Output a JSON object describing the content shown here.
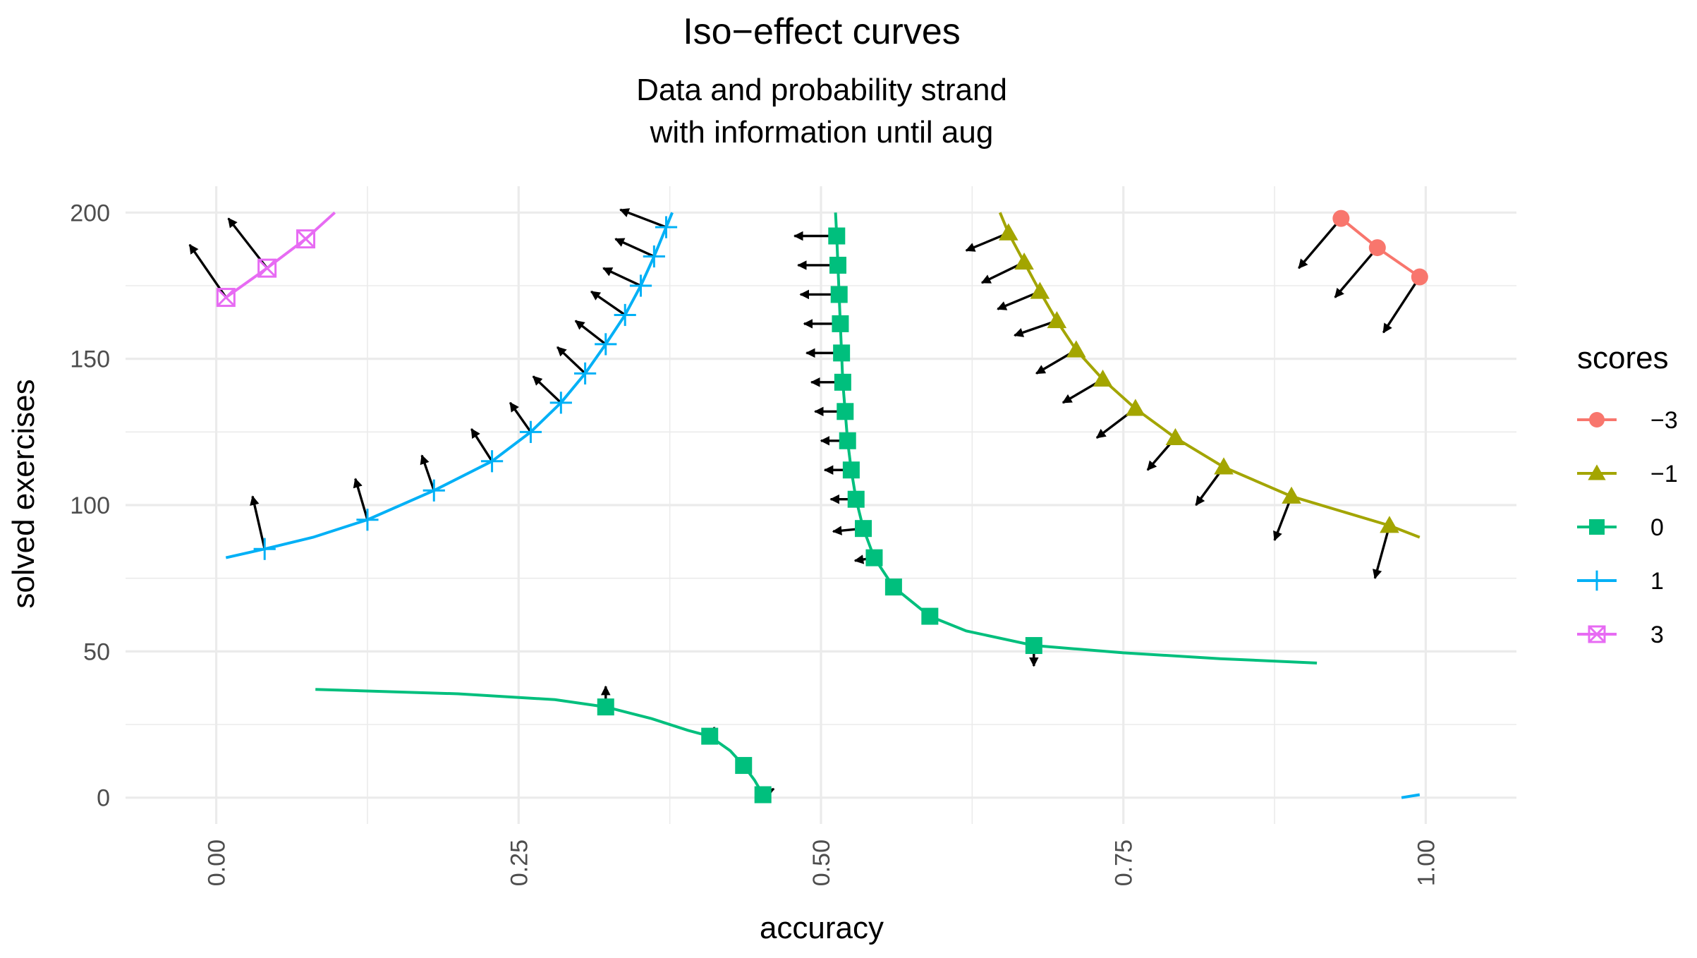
{
  "chart_data": {
    "type": "line",
    "title": "Iso−effect curves",
    "subtitle_lines": [
      "Data and probability strand",
      "with information until aug"
    ],
    "xlabel": "accuracy",
    "ylabel": "solved exercises",
    "xlim": [
      -0.075,
      1.075
    ],
    "ylim": [
      -9,
      209
    ],
    "x_ticks": [
      0,
      0.25,
      0.5,
      0.75,
      1
    ],
    "x_tick_labels": [
      "0.00",
      "0.25",
      "0.50",
      "0.75",
      "1.00"
    ],
    "y_ticks": [
      0,
      50,
      100,
      150,
      200
    ],
    "y_tick_labels": [
      "0",
      "50",
      "100",
      "150",
      "200"
    ],
    "grid": true,
    "legend_title": "scores",
    "legend_position": "right",
    "series": [
      {
        "name": "−3",
        "color": "#F8766D",
        "shape": "circle",
        "lines": [
          [
            [
              0.93,
              198
            ],
            [
              0.96,
              188
            ],
            [
              0.995,
              178
            ]
          ]
        ],
        "points": [
          [
            0.93,
            198
          ],
          [
            0.96,
            188
          ],
          [
            0.995,
            178
          ]
        ],
        "arrows": [
          [
            0.93,
            198,
            0.895,
            181
          ],
          [
            0.96,
            188,
            0.925,
            171
          ],
          [
            0.995,
            178,
            0.965,
            159
          ]
        ]
      },
      {
        "name": "−1",
        "color": "#A3A500",
        "shape": "triangle",
        "lines": [
          [
            [
              0.648,
              200
            ],
            [
              0.655,
              193
            ],
            [
              0.668,
              183
            ],
            [
              0.681,
              173
            ],
            [
              0.695,
              163
            ],
            [
              0.711,
              153
            ],
            [
              0.733,
              143
            ],
            [
              0.76,
              133
            ],
            [
              0.793,
              123
            ],
            [
              0.833,
              113
            ],
            [
              0.889,
              103
            ],
            [
              0.97,
              93
            ],
            [
              0.995,
              89
            ]
          ]
        ],
        "points": [
          [
            0.655,
            193
          ],
          [
            0.668,
            183
          ],
          [
            0.681,
            173
          ],
          [
            0.695,
            163
          ],
          [
            0.711,
            153
          ],
          [
            0.733,
            143
          ],
          [
            0.76,
            133
          ],
          [
            0.793,
            123
          ],
          [
            0.833,
            113
          ],
          [
            0.889,
            103
          ],
          [
            0.97,
            93
          ]
        ],
        "arrows": [
          [
            0.655,
            193,
            0.62,
            187
          ],
          [
            0.668,
            183,
            0.633,
            176
          ],
          [
            0.681,
            173,
            0.646,
            167
          ],
          [
            0.695,
            163,
            0.66,
            158
          ],
          [
            0.711,
            153,
            0.678,
            145
          ],
          [
            0.733,
            143,
            0.7,
            135
          ],
          [
            0.76,
            133,
            0.728,
            123
          ],
          [
            0.793,
            123,
            0.77,
            112
          ],
          [
            0.833,
            113,
            0.81,
            100
          ],
          [
            0.889,
            103,
            0.875,
            88
          ],
          [
            0.97,
            93,
            0.958,
            75
          ]
        ]
      },
      {
        "name": "0",
        "color": "#00BF7D",
        "shape": "square",
        "lines": [
          [
            [
              0.512,
              200
            ],
            [
              0.513,
              192
            ],
            [
              0.514,
              182
            ],
            [
              0.515,
              172
            ],
            [
              0.516,
              162
            ],
            [
              0.517,
              152
            ],
            [
              0.518,
              142
            ],
            [
              0.52,
              132
            ],
            [
              0.522,
              122
            ],
            [
              0.525,
              112
            ],
            [
              0.529,
              102
            ],
            [
              0.535,
              92
            ],
            [
              0.544,
              82
            ],
            [
              0.56,
              72
            ],
            [
              0.59,
              62
            ],
            [
              0.62,
              57
            ],
            [
              0.676,
              52
            ],
            [
              0.75,
              49.5
            ],
            [
              0.83,
              47.5
            ],
            [
              0.91,
              46
            ]
          ],
          [
            [
              0.082,
              37
            ],
            [
              0.2,
              35.5
            ],
            [
              0.28,
              33.5
            ],
            [
              0.322,
              31
            ],
            [
              0.36,
              27
            ],
            [
              0.39,
              23
            ],
            [
              0.408,
              21
            ],
            [
              0.425,
              16
            ],
            [
              0.436,
              11
            ],
            [
              0.445,
              6
            ],
            [
              0.452,
              1
            ]
          ]
        ],
        "points": [
          [
            0.513,
            192
          ],
          [
            0.514,
            182
          ],
          [
            0.515,
            172
          ],
          [
            0.516,
            162
          ],
          [
            0.517,
            152
          ],
          [
            0.518,
            142
          ],
          [
            0.52,
            132
          ],
          [
            0.522,
            122
          ],
          [
            0.525,
            112
          ],
          [
            0.529,
            102
          ],
          [
            0.535,
            92
          ],
          [
            0.544,
            82
          ],
          [
            0.56,
            72
          ],
          [
            0.59,
            62
          ],
          [
            0.676,
            52
          ],
          [
            0.322,
            31
          ],
          [
            0.408,
            21
          ],
          [
            0.436,
            11
          ],
          [
            0.452,
            1
          ]
        ],
        "arrows": [
          [
            0.513,
            192,
            0.478,
            192
          ],
          [
            0.514,
            182,
            0.481,
            182
          ],
          [
            0.515,
            172,
            0.483,
            172
          ],
          [
            0.516,
            162,
            0.486,
            162
          ],
          [
            0.517,
            152,
            0.488,
            152
          ],
          [
            0.518,
            142,
            0.492,
            142
          ],
          [
            0.52,
            132,
            0.495,
            132
          ],
          [
            0.522,
            122,
            0.5,
            122
          ],
          [
            0.525,
            112,
            0.503,
            112
          ],
          [
            0.529,
            102,
            0.508,
            102
          ],
          [
            0.535,
            92,
            0.51,
            91
          ],
          [
            0.544,
            82,
            0.528,
            81
          ],
          [
            0.676,
            52,
            0.676,
            45
          ],
          [
            0.322,
            31,
            0.322,
            38
          ],
          [
            0.408,
            21,
            0.412,
            24
          ],
          [
            0.436,
            11,
            0.437,
            12
          ],
          [
            0.452,
            1,
            0.461,
            3
          ]
        ]
      },
      {
        "name": "1",
        "color": "#00B0F6",
        "shape": "plus",
        "lines": [
          [
            [
              0.008,
              82
            ],
            [
              0.04,
              85
            ],
            [
              0.08,
              89
            ],
            [
              0.125,
              95
            ],
            [
              0.18,
              105
            ],
            [
              0.228,
              115
            ],
            [
              0.26,
              125
            ],
            [
              0.285,
              135
            ],
            [
              0.305,
              145
            ],
            [
              0.322,
              155
            ],
            [
              0.338,
              165
            ],
            [
              0.351,
              175
            ],
            [
              0.362,
              185
            ],
            [
              0.372,
              195
            ],
            [
              0.377,
              200
            ]
          ],
          [
            [
              0.98,
              0
            ],
            [
              0.995,
              1
            ]
          ]
        ],
        "points": [
          [
            0.04,
            85
          ],
          [
            0.125,
            95
          ],
          [
            0.18,
            105
          ],
          [
            0.228,
            115
          ],
          [
            0.26,
            125
          ],
          [
            0.285,
            135
          ],
          [
            0.305,
            145
          ],
          [
            0.322,
            155
          ],
          [
            0.338,
            165
          ],
          [
            0.351,
            175
          ],
          [
            0.362,
            185
          ],
          [
            0.372,
            195
          ]
        ],
        "arrows": [
          [
            0.04,
            85,
            0.03,
            103
          ],
          [
            0.125,
            95,
            0.115,
            109
          ],
          [
            0.18,
            105,
            0.17,
            117
          ],
          [
            0.228,
            115,
            0.211,
            126
          ],
          [
            0.26,
            125,
            0.243,
            135
          ],
          [
            0.285,
            135,
            0.262,
            144
          ],
          [
            0.305,
            145,
            0.282,
            154
          ],
          [
            0.322,
            155,
            0.297,
            163
          ],
          [
            0.338,
            165,
            0.31,
            173
          ],
          [
            0.351,
            175,
            0.32,
            181
          ],
          [
            0.362,
            185,
            0.33,
            191
          ],
          [
            0.372,
            195,
            0.334,
            201
          ]
        ]
      },
      {
        "name": "3",
        "color": "#E76BF3",
        "shape": "square-cross",
        "lines": [
          [
            [
              0.008,
              171
            ],
            [
              0.042,
              181
            ],
            [
              0.074,
              191
            ],
            [
              0.098,
              200
            ]
          ]
        ],
        "points": [
          [
            0.008,
            171
          ],
          [
            0.042,
            181
          ],
          [
            0.074,
            191
          ]
        ],
        "arrows": [
          [
            0.008,
            171,
            -0.022,
            189
          ],
          [
            0.042,
            181,
            0.01,
            198
          ]
        ]
      }
    ]
  }
}
